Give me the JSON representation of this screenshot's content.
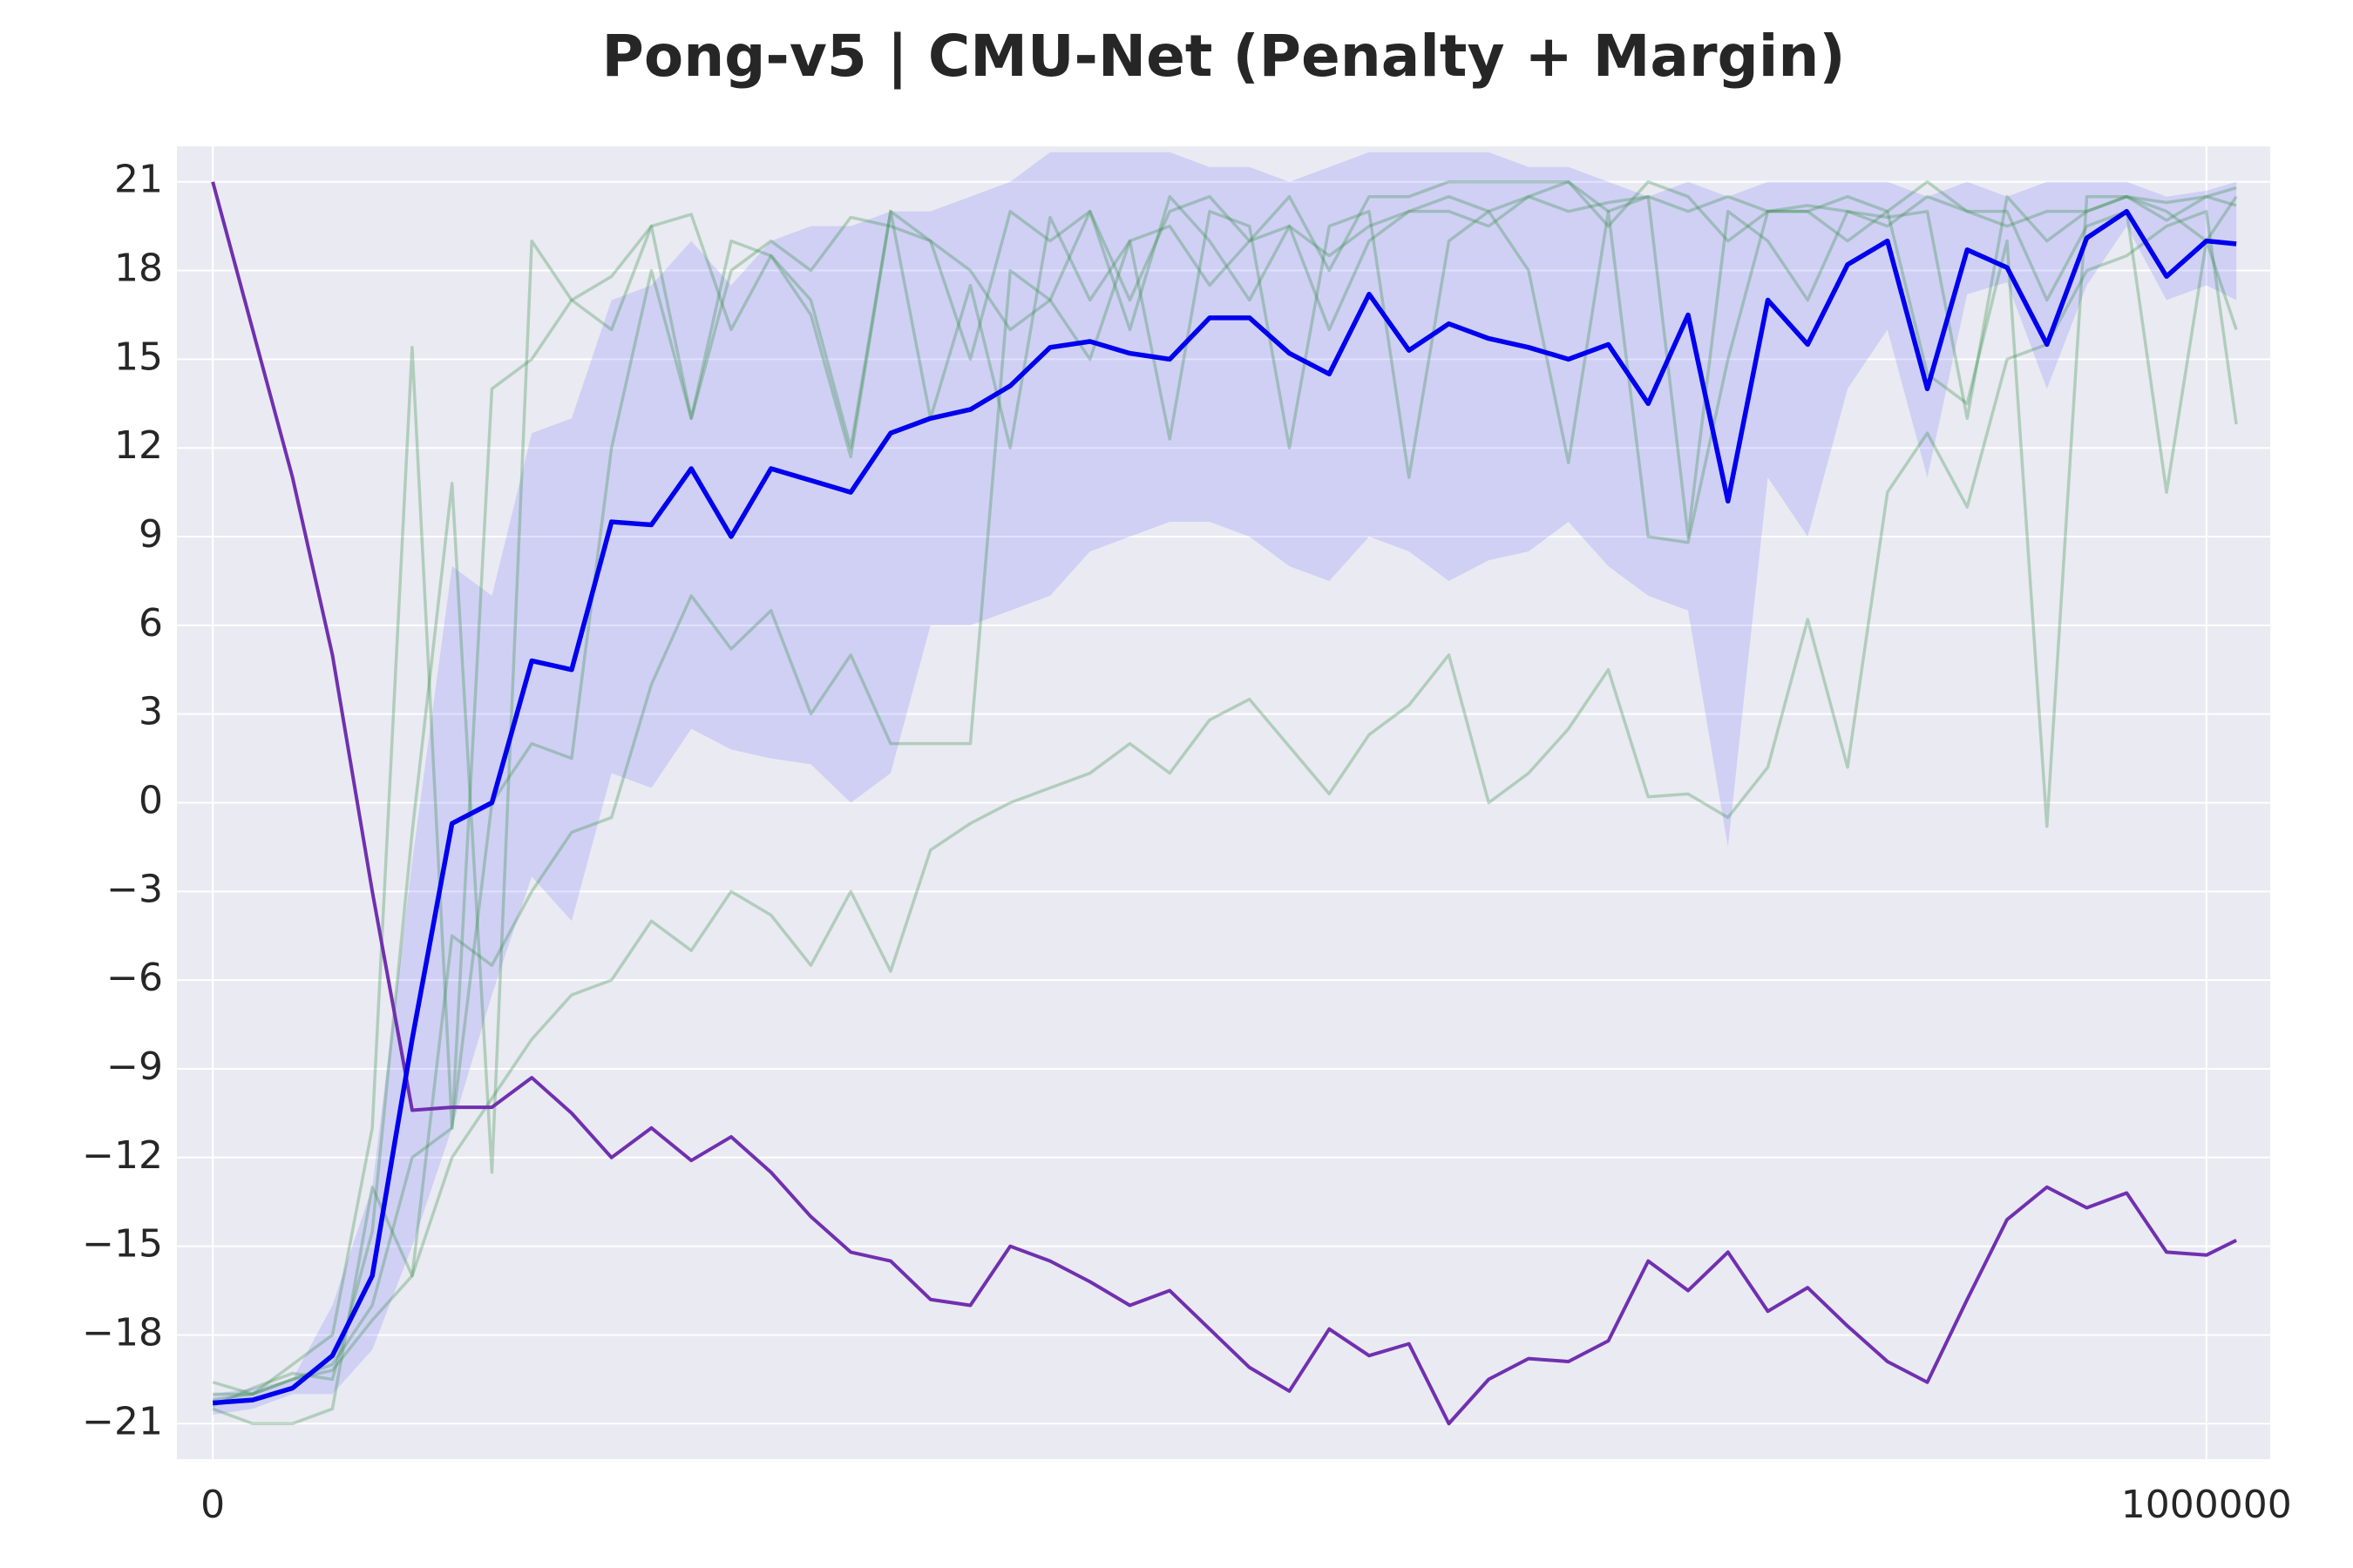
{
  "chart_data": {
    "type": "line",
    "title": "Pong-v5 | CMU-Net (Penalty + Margin)",
    "grid": true,
    "xlim": [
      -18000,
      1032000
    ],
    "ylim": [
      -22.2,
      22.2
    ],
    "xticks": [
      0,
      1000000
    ],
    "yticks": [
      {
        "value": -21,
        "label": "−21"
      },
      {
        "value": -18,
        "label": "−18"
      },
      {
        "value": -15,
        "label": "−15"
      },
      {
        "value": -12,
        "label": "−12"
      },
      {
        "value": -9,
        "label": "−9"
      },
      {
        "value": -6,
        "label": "−6"
      },
      {
        "value": -3,
        "label": "−3"
      },
      0,
      3,
      6,
      9,
      12,
      15,
      18,
      21
    ],
    "x": [
      0,
      20000,
      40000,
      60000,
      80000,
      100000,
      120000,
      140000,
      160000,
      180000,
      200000,
      220000,
      240000,
      260000,
      280000,
      300000,
      320000,
      340000,
      360000,
      380000,
      400000,
      420000,
      440000,
      460000,
      480000,
      500000,
      520000,
      540000,
      560000,
      580000,
      600000,
      620000,
      640000,
      660000,
      680000,
      700000,
      720000,
      740000,
      760000,
      780000,
      800000,
      820000,
      840000,
      860000,
      880000,
      900000,
      920000,
      940000,
      960000,
      980000,
      1000000,
      1015000
    ],
    "band": {
      "color": "#6a6aff",
      "lower": [
        -20.7,
        -20.5,
        -20,
        -20,
        -18.5,
        -15,
        -11,
        -6.5,
        -2.5,
        -4,
        1,
        0.5,
        2.5,
        1.8,
        1.5,
        1.3,
        0,
        1,
        6,
        6,
        6.5,
        7,
        8.5,
        9,
        9.5,
        9.5,
        9,
        8,
        7.5,
        9,
        8.5,
        7.5,
        8.2,
        8.5,
        9.5,
        8,
        7,
        6.5,
        -1.5,
        11,
        9,
        14,
        16,
        11,
        17.2,
        17.6,
        14,
        17.5,
        19.5,
        17,
        17.5,
        17
      ],
      "upper": [
        -20,
        -19.8,
        -19.5,
        -17,
        -13,
        -2,
        8,
        7,
        12.5,
        13,
        17,
        17.5,
        19,
        17.5,
        19,
        19.5,
        19.5,
        20,
        20,
        20.5,
        21,
        22,
        22,
        22,
        22,
        21.5,
        21.5,
        21,
        21.5,
        22,
        22,
        22,
        22,
        21.5,
        21.5,
        21,
        20.5,
        21,
        20.5,
        21,
        21,
        21,
        21,
        20.5,
        21,
        20.5,
        21,
        21,
        21,
        20.5,
        20.7,
        21
      ]
    },
    "series": [
      {
        "color": "#2e8b3e",
        "values": [
          -20.5,
          -21,
          -21,
          -20.5,
          -13,
          -16,
          -12,
          -10,
          -8,
          -6.5,
          -6,
          -4,
          -5,
          -3,
          -3.8,
          -5.5,
          -3,
          -5.7,
          -1.6,
          -0.7,
          0,
          0.5,
          1,
          2,
          1,
          2.8,
          3.5,
          1.9,
          0.3,
          2.3,
          3.3,
          5,
          0,
          1,
          2.5,
          4.5,
          0.2,
          0.3,
          -0.5,
          1.2,
          6.2,
          1.2,
          10.5,
          12.5,
          10,
          15,
          15.5,
          18,
          18.5,
          19.5,
          20,
          12.8
        ]
      },
      {
        "color": "#2e8b3e",
        "values": [
          -19.6,
          -20,
          -19.5,
          -19.2,
          -17.5,
          -16,
          -4.5,
          -5.5,
          -3,
          -1,
          -0.5,
          4,
          7,
          5.2,
          6.5,
          3,
          5,
          2,
          2,
          2,
          18,
          17,
          15,
          19,
          19.5,
          17.5,
          19,
          19.5,
          18.5,
          19.5,
          20,
          20.5,
          20,
          20.5,
          21,
          20,
          20.5,
          20,
          20.5,
          20,
          20.2,
          20,
          19.5,
          20.5,
          20,
          19.5,
          20,
          20,
          20.5,
          20.3,
          20.5,
          20.8
        ]
      },
      {
        "color": "#2e8b3e",
        "values": [
          -20,
          -20,
          -19,
          -18,
          -11,
          15.4,
          -11,
          14,
          15,
          17,
          16,
          19.5,
          13,
          19,
          18.5,
          17,
          12,
          20,
          19,
          15,
          20,
          19,
          20,
          17,
          20,
          20.5,
          19,
          20.5,
          18,
          20.5,
          20.5,
          21,
          21,
          21,
          21,
          19.5,
          21,
          20.5,
          19,
          20,
          20,
          20.5,
          20,
          21,
          20,
          20,
          17,
          19.5,
          20,
          10.5,
          19,
          16
        ]
      },
      {
        "color": "#2e8b3e",
        "values": [
          -20.2,
          -20,
          -19.5,
          -19,
          -17,
          -12,
          -11,
          0,
          2,
          1.5,
          12,
          18,
          13,
          18,
          19,
          18,
          19.8,
          19.5,
          19,
          18,
          16,
          17,
          20,
          16,
          20.5,
          19,
          17,
          19.5,
          16,
          19,
          20,
          20,
          19.5,
          20.5,
          20,
          20.3,
          20.5,
          9,
          20,
          19,
          17,
          20,
          19.8,
          20,
          13,
          20.5,
          19,
          20,
          20.5,
          20,
          19,
          20.5
        ]
      },
      {
        "color": "#2e8b3e",
        "values": [
          -20.4,
          -19.8,
          -19.3,
          -19.5,
          -14.5,
          -1,
          10.8,
          -12.5,
          19,
          17,
          17.8,
          19.5,
          19.9,
          16,
          18.5,
          16.5,
          11.7,
          20,
          13,
          17.5,
          12,
          19.8,
          17,
          19,
          12.3,
          20,
          19.5,
          12,
          19.5,
          20,
          11,
          19,
          20,
          18,
          11.5,
          20,
          9,
          8.8,
          15,
          20,
          20,
          19,
          20,
          14.5,
          13.5,
          19,
          -0.8,
          20.5,
          20.5,
          19.7,
          20.5,
          20.2
        ]
      },
      {
        "color": "#7030b0",
        "values": [
          21,
          16,
          11,
          5,
          -3,
          -10.4,
          -10.3,
          -10.3,
          -9.3,
          -10.5,
          -12,
          -11,
          -12.1,
          -11.3,
          -12.5,
          -14,
          -15.2,
          -15.5,
          -16.8,
          -17,
          -15,
          -15.5,
          -16.2,
          -17,
          -16.5,
          -17.8,
          -19.1,
          -19.9,
          -17.8,
          -18.7,
          -18.3,
          -21,
          -19.5,
          -18.8,
          -18.9,
          -18.2,
          -15.5,
          -16.5,
          -15.2,
          -17.2,
          -16.4,
          -17.7,
          -18.9,
          -19.6,
          -16.8,
          -14.1,
          -13,
          -13.7,
          -13.2,
          -15.2,
          -15.3,
          -14.8
        ]
      },
      {
        "color": "#0000ee",
        "values": [
          -20.3,
          -20.2,
          -19.8,
          -18.7,
          -16,
          -8,
          -0.7,
          0,
          4.8,
          4.5,
          9.5,
          9.4,
          11.3,
          9,
          11.3,
          10.9,
          10.5,
          12.5,
          13,
          13.3,
          14.1,
          15.4,
          15.6,
          15.2,
          15,
          16.4,
          16.4,
          15.2,
          14.5,
          17.2,
          15.3,
          16.2,
          15.7,
          15.4,
          15,
          15.5,
          13.5,
          16.5,
          10.2,
          17,
          15.5,
          18.2,
          19,
          14,
          18.7,
          18.1,
          15.5,
          19.1,
          20,
          17.8,
          19,
          18.9
        ]
      }
    ]
  }
}
